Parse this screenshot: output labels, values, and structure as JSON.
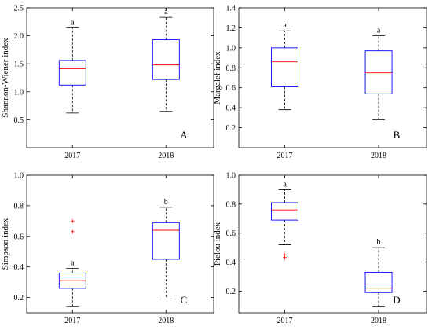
{
  "chart_data": [
    {
      "type": "box",
      "panel": "A",
      "ylabel": "Shannon-Wiener index",
      "ylim": [
        0,
        2.5
      ],
      "yticks": [
        "0.5",
        "1.0",
        "1.5",
        "2.0",
        "2.5"
      ],
      "categories": [
        "2017",
        "2018"
      ],
      "boxes": [
        {
          "category": "2017",
          "whisker_low": 0.62,
          "q1": 1.12,
          "median": 1.41,
          "q3": 1.56,
          "whisker_high": 2.14,
          "letter": "a",
          "outliers": []
        },
        {
          "category": "2018",
          "whisker_low": 0.65,
          "q1": 1.22,
          "median": 1.48,
          "q3": 1.93,
          "whisker_high": 2.33,
          "letter": "a",
          "outliers": []
        }
      ]
    },
    {
      "type": "box",
      "panel": "B",
      "ylabel": "Margalef index",
      "ylim": [
        0,
        1.4
      ],
      "yticks": [
        "0.2",
        "0.4",
        "0.6",
        "0.8",
        "1.0",
        "1.2",
        "1.4"
      ],
      "categories": [
        "2017",
        "2018"
      ],
      "boxes": [
        {
          "category": "2017",
          "whisker_low": 0.38,
          "q1": 0.61,
          "median": 0.86,
          "q3": 1.0,
          "whisker_high": 1.17,
          "letter": "a",
          "outliers": []
        },
        {
          "category": "2018",
          "whisker_low": 0.28,
          "q1": 0.54,
          "median": 0.75,
          "q3": 0.97,
          "whisker_high": 1.12,
          "letter": "a",
          "outliers": []
        }
      ]
    },
    {
      "type": "box",
      "panel": "C",
      "ylabel": "Simpson index",
      "ylim": [
        0.1,
        1.0
      ],
      "yticks": [
        "0.2",
        "0.4",
        "0.6",
        "0.8",
        "1.0"
      ],
      "categories": [
        "2017",
        "2018"
      ],
      "boxes": [
        {
          "category": "2017",
          "whisker_low": 0.14,
          "q1": 0.26,
          "median": 0.31,
          "q3": 0.36,
          "whisker_high": 0.39,
          "letter": "a",
          "outliers": [
            0.7,
            0.63
          ]
        },
        {
          "category": "2018",
          "whisker_low": 0.19,
          "q1": 0.45,
          "median": 0.64,
          "q3": 0.69,
          "whisker_high": 0.79,
          "letter": "b",
          "outliers": []
        }
      ]
    },
    {
      "type": "box",
      "panel": "D",
      "ylabel": "Pielou index",
      "ylim": [
        0.05,
        1.0
      ],
      "yticks": [
        "0.2",
        "0.4",
        "0.6",
        "0.8",
        "1.0"
      ],
      "categories": [
        "2017",
        "2018"
      ],
      "boxes": [
        {
          "category": "2017",
          "whisker_low": 0.52,
          "q1": 0.69,
          "median": 0.76,
          "q3": 0.81,
          "whisker_high": 0.9,
          "letter": "a",
          "outliers": [
            0.45,
            0.43
          ]
        },
        {
          "category": "2018",
          "whisker_low": 0.09,
          "q1": 0.19,
          "median": 0.22,
          "q3": 0.33,
          "whisker_high": 0.5,
          "letter": "b",
          "outliers": []
        }
      ]
    }
  ]
}
